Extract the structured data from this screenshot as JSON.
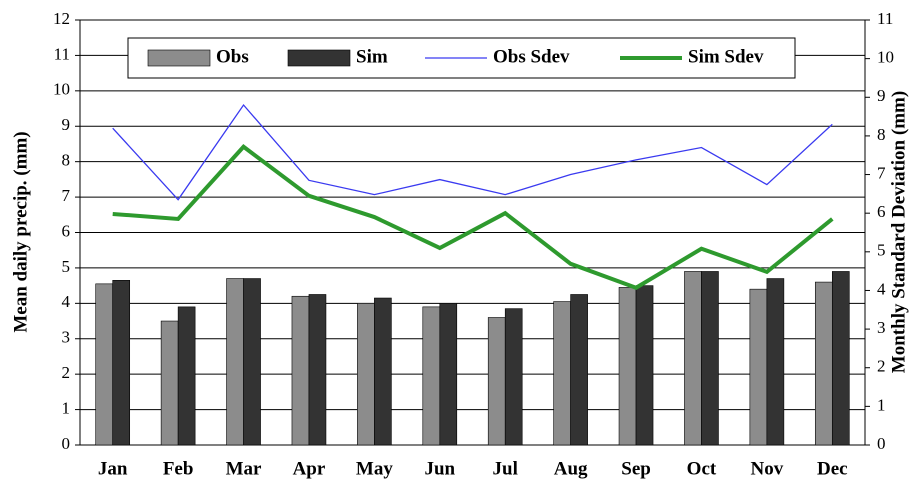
{
  "chart_data": {
    "type": "bar",
    "y_label": "Mean daily precip. (mm)",
    "y2_label": "Monthly Standard Deviation (mm)",
    "categories": [
      "Jan",
      "Feb",
      "Mar",
      "Apr",
      "May",
      "Jun",
      "Jul",
      "Aug",
      "Sep",
      "Oct",
      "Nov",
      "Dec"
    ],
    "ylim": [
      0,
      12
    ],
    "yticks": [
      0,
      1,
      2,
      3,
      4,
      5,
      6,
      7,
      8,
      9,
      10,
      11,
      12
    ],
    "y2lim": [
      0,
      11
    ],
    "y2ticks": [
      0,
      1,
      2,
      3,
      4,
      5,
      6,
      7,
      8,
      9,
      10,
      11
    ],
    "grid": true,
    "legend": "top",
    "series": [
      {
        "name": "Obs",
        "type": "bar",
        "color": "#8c8c8c",
        "values": [
          4.55,
          3.5,
          4.7,
          4.2,
          4.0,
          3.9,
          3.6,
          4.05,
          4.45,
          4.9,
          4.4,
          4.6
        ]
      },
      {
        "name": "Sim",
        "type": "bar",
        "color": "#333333",
        "values": [
          4.65,
          3.9,
          4.7,
          4.25,
          4.15,
          4.0,
          3.85,
          4.25,
          4.5,
          4.9,
          4.7,
          4.9
        ]
      },
      {
        "name": "Obs Sdev",
        "type": "line",
        "axis": "y2",
        "color": "#3a3af0",
        "width": 1.3,
        "values": [
          8.2,
          6.35,
          8.8,
          6.85,
          6.48,
          6.87,
          6.48,
          7.0,
          7.38,
          7.7,
          6.74,
          8.3
        ]
      },
      {
        "name": "Sim Sdev",
        "type": "line",
        "axis": "y2",
        "color": "#2e9a2e",
        "width": 4,
        "values": [
          5.98,
          5.85,
          7.72,
          6.45,
          5.9,
          5.1,
          6.0,
          4.69,
          4.07,
          5.08,
          4.48,
          5.85
        ]
      }
    ]
  }
}
